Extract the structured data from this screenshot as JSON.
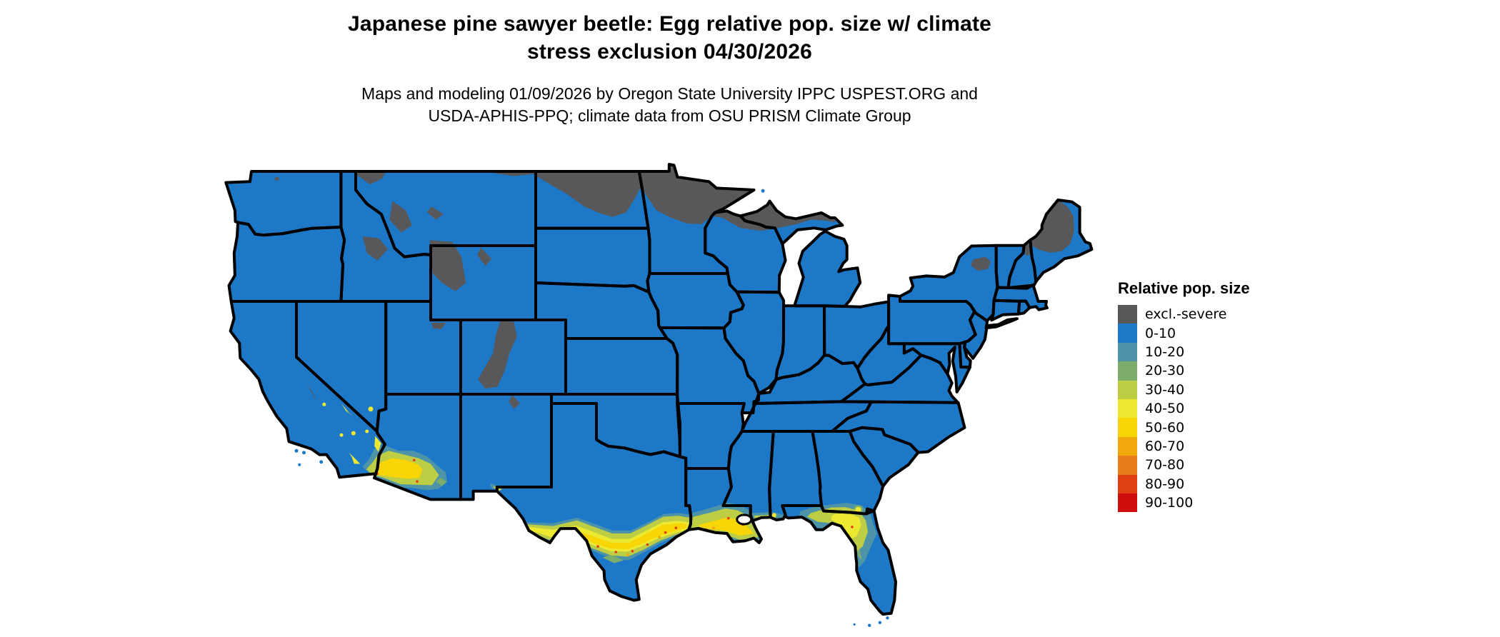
{
  "title": {
    "line1": "Japanese pine sawyer beetle: Egg relative pop. size w/ climate",
    "line2": "stress exclusion 04/30/2026"
  },
  "subtitle": {
    "line1": "Maps and modeling 01/09/2026 by Oregon State University IPPC USPEST.ORG and",
    "line2": "USDA-APHIS-PPQ; climate data from OSU PRISM Climate Group"
  },
  "legend": {
    "title": "Relative pop. size",
    "items": [
      {
        "label": "excl.-severe",
        "color": "#58585A"
      },
      {
        "label": "0-10",
        "color": "#1E78C8"
      },
      {
        "label": "10-20",
        "color": "#4E94A8"
      },
      {
        "label": "20-30",
        "color": "#7CAD6C"
      },
      {
        "label": "30-40",
        "color": "#BDCD44"
      },
      {
        "label": "40-50",
        "color": "#EDE930"
      },
      {
        "label": "50-60",
        "color": "#F7D506"
      },
      {
        "label": "60-70",
        "color": "#F0A80C"
      },
      {
        "label": "70-80",
        "color": "#E87E1A"
      },
      {
        "label": "80-90",
        "color": "#DF3F13"
      },
      {
        "label": "90-100",
        "color": "#CE0D0D"
      }
    ]
  },
  "map": {
    "land_color": "#1E78C8",
    "border_color": "#000000",
    "water_color": "#FFFFFF"
  }
}
